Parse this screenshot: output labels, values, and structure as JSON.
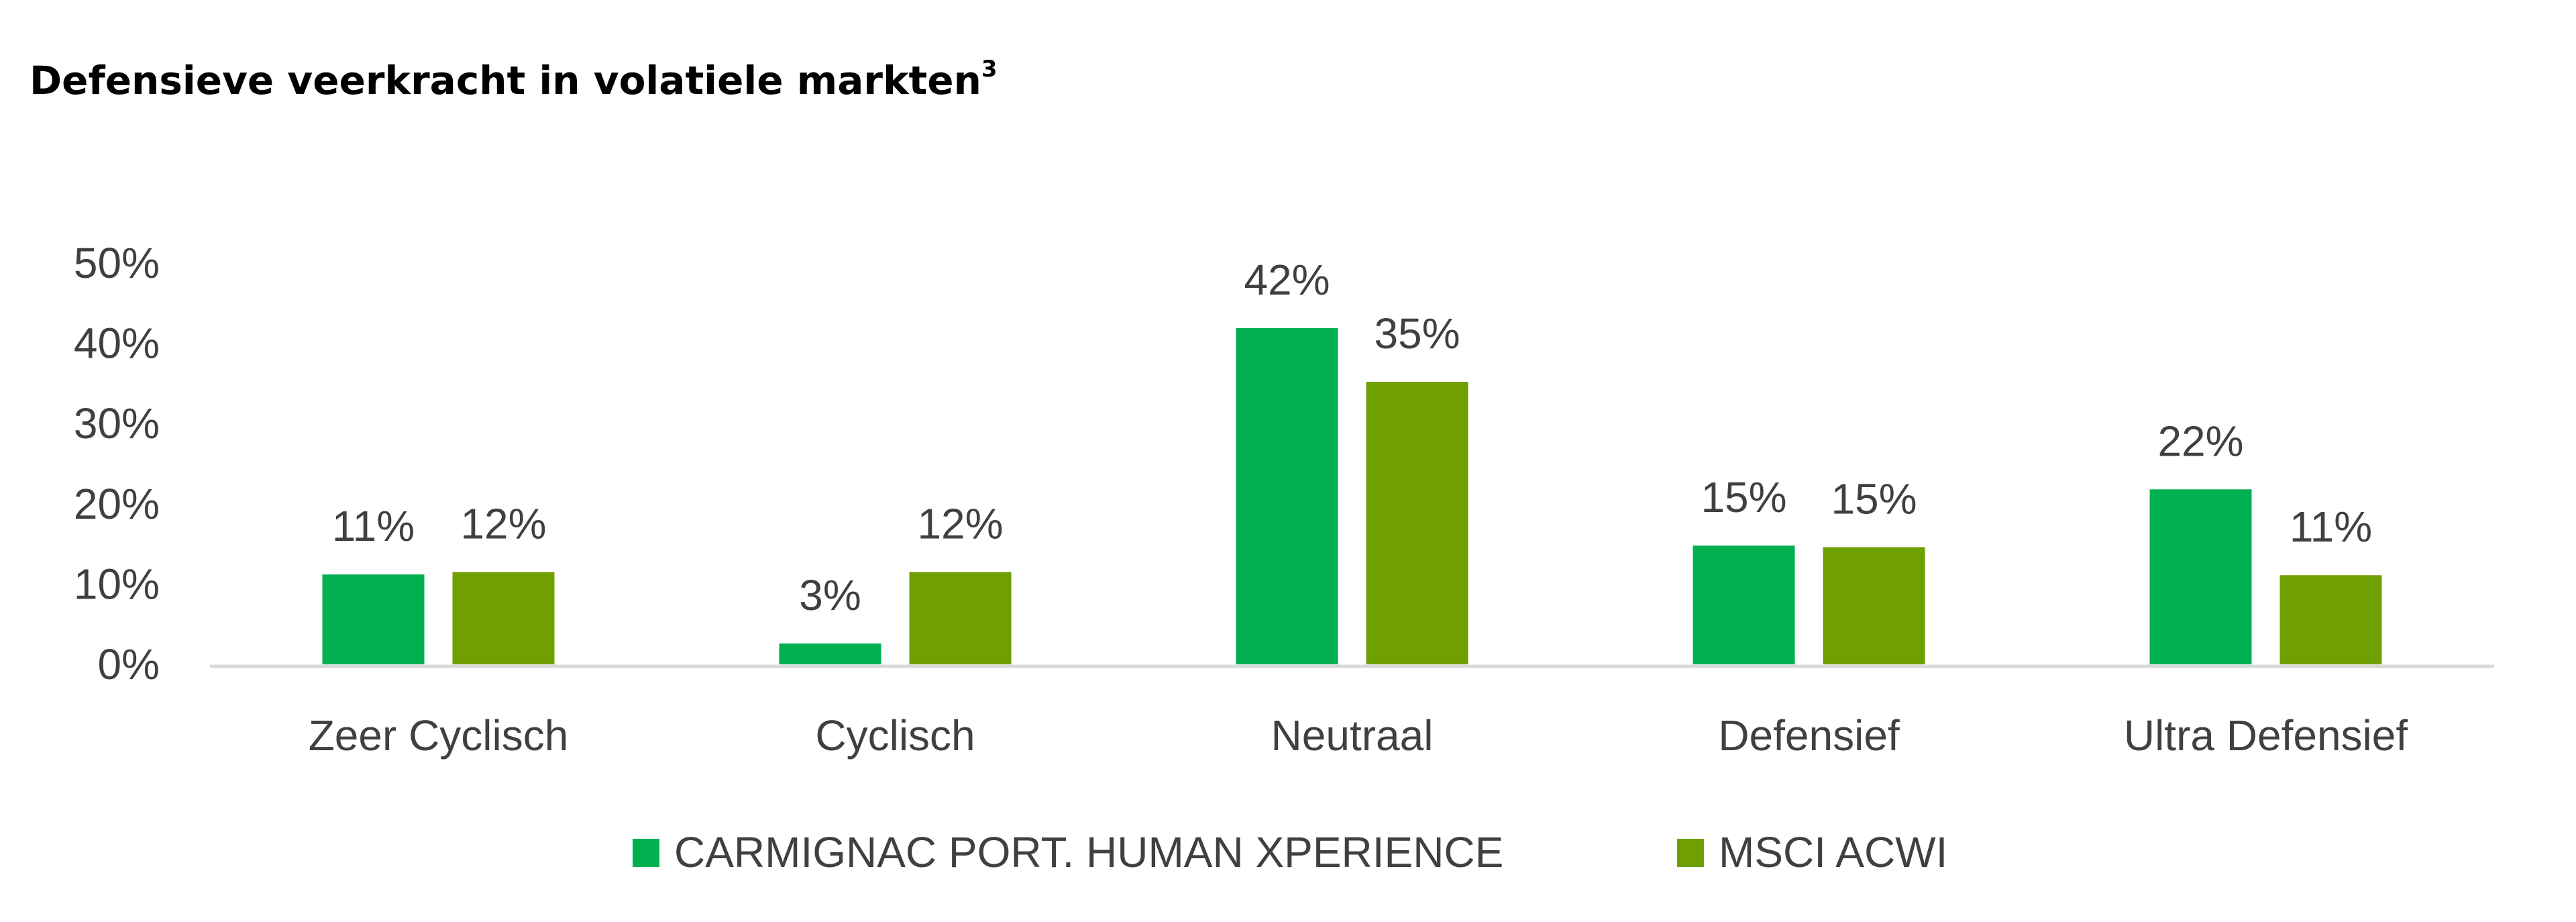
{
  "chart_data": {
    "type": "bar",
    "title": "Defensieve veerkracht in volatiele markten",
    "title_superscript": "3",
    "xlabel": "",
    "ylabel": "",
    "ylim": [
      0,
      50
    ],
    "yticks": [
      0,
      10,
      20,
      30,
      40,
      50
    ],
    "ytick_labels": [
      "0%",
      "10%",
      "20%",
      "30%",
      "40%",
      "50%"
    ],
    "grid": false,
    "legend_position": "bottom-center",
    "categories": [
      "Zeer Cyclisch",
      "Cyclisch",
      "Neutraal",
      "Defensief",
      "Ultra Defensief"
    ],
    "series": [
      {
        "name": "CARMIGNAC PORT. HUMAN XPERIENCE",
        "color": "#00b050",
        "values": [
          11.2,
          2.6,
          41.9,
          14.8,
          21.8
        ],
        "labels": [
          "11%",
          "3%",
          "42%",
          "15%",
          "22%"
        ]
      },
      {
        "name": "MSCI ACWI",
        "color": "#70a000",
        "values": [
          11.5,
          11.5,
          35.2,
          14.6,
          11.1
        ],
        "labels": [
          "12%",
          "12%",
          "35%",
          "15%",
          "11%"
        ]
      }
    ]
  }
}
